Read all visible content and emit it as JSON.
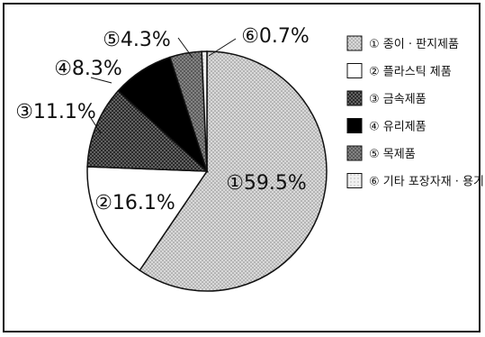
{
  "chart_data": {
    "type": "pie",
    "start_angle_deg": 0,
    "direction": "clockwise",
    "legend_position": "right",
    "slices": [
      {
        "marker": "①",
        "name": "종이 · 판지제품",
        "value": 59.5,
        "label": "59.5%",
        "color": "#c8c8c8",
        "pattern": "dots-light"
      },
      {
        "marker": "②",
        "name": "플라스틱 제품",
        "value": 16.1,
        "label": "16.1%",
        "color": "#ffffff",
        "pattern": "none"
      },
      {
        "marker": "③",
        "name": "금속제품",
        "value": 11.1,
        "label": "11.1%",
        "color": "#3a3a3a",
        "pattern": "dots-dark"
      },
      {
        "marker": "④",
        "name": "유리제품",
        "value": 8.3,
        "label": "8.3%",
        "color": "#000000",
        "pattern": "none"
      },
      {
        "marker": "⑤",
        "name": "목제품",
        "value": 4.3,
        "label": "4.3%",
        "color": "#6a6a6a",
        "pattern": "dots-mid"
      },
      {
        "marker": "⑥",
        "name": "기타 포장자재 · 용기",
        "value": 0.7,
        "label": "0.7%",
        "color": "#e6e6e6",
        "pattern": "dots-faint"
      }
    ]
  }
}
